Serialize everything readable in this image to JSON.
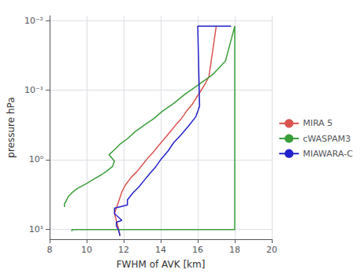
{
  "chart_data": {
    "type": "line",
    "title": "",
    "xlabel": "FWHM of AVK [km]",
    "ylabel": "pressure hPa",
    "log": "y",
    "grid": true,
    "legend": "right",
    "xlim": [
      8,
      20
    ],
    "xticks": [
      8,
      10,
      12,
      14,
      16,
      18,
      20
    ],
    "ylim": [
      0.0085,
      14.0
    ],
    "yticks": [
      {
        "value": 0.01,
        "label": "10⁻²"
      },
      {
        "value": 0.1,
        "label": "10⁻¹"
      },
      {
        "value": 1,
        "label": "10⁰"
      },
      {
        "value": 10,
        "label": "10¹"
      }
    ],
    "series": [
      {
        "name": "MIRA 5",
        "color": "#d9534f",
        "x": [
          11.8,
          11.7,
          11.6,
          11.5,
          11.6,
          11.7,
          11.8,
          11.9,
          12.1,
          12.4,
          12.7,
          13.0,
          13.3,
          13.6,
          13.9,
          14.2,
          14.5,
          14.8,
          15.1,
          15.4,
          15.7,
          16.0,
          16.3,
          16.6,
          17.0
        ],
        "values": [
          12.5,
          9.5,
          7.5,
          6.0,
          5.0,
          4.2,
          3.5,
          2.9,
          2.3,
          1.8,
          1.5,
          1.2,
          0.95,
          0.78,
          0.62,
          0.5,
          0.4,
          0.32,
          0.26,
          0.2,
          0.16,
          0.12,
          0.09,
          0.065,
          0.012
        ]
      },
      {
        "name": "cWASPAM3",
        "color": "#3a9e3a",
        "x": [
          8.8,
          8.8,
          8.9,
          9.0,
          9.2,
          9.5,
          10.0,
          10.4,
          10.8,
          11.1,
          11.4,
          11.5,
          11.2,
          11.5,
          11.8,
          12.2,
          12.6,
          13.1,
          13.6,
          14.1,
          14.7,
          15.3,
          16.0,
          16.8,
          17.5,
          18.0,
          18.0,
          9.2,
          9.2
        ],
        "values": [
          4.8,
          4.3,
          3.9,
          3.4,
          3.0,
          2.6,
          2.2,
          1.9,
          1.65,
          1.45,
          1.25,
          1.05,
          0.85,
          0.72,
          0.6,
          0.5,
          0.4,
          0.32,
          0.26,
          0.2,
          0.155,
          0.115,
          0.085,
          0.06,
          0.038,
          0.012,
          10.2,
          10.2,
          10.8
        ]
      },
      {
        "name": "MIAWARA-C",
        "color": "#2222cc",
        "x": [
          11.8,
          11.7,
          11.6,
          11.6,
          11.9,
          11.5,
          11.5,
          12.2,
          12.2,
          12.5,
          12.8,
          13.1,
          13.4,
          13.7,
          14.0,
          14.4,
          14.7,
          15.1,
          15.5,
          15.9,
          16.1,
          16.0,
          17.8
        ],
        "values": [
          12.5,
          10.0,
          9.0,
          8.0,
          7.5,
          6.0,
          5.0,
          4.5,
          3.8,
          3.0,
          2.5,
          2.0,
          1.6,
          1.3,
          1.0,
          0.75,
          0.57,
          0.44,
          0.33,
          0.24,
          0.17,
          0.012,
          0.012
        ]
      }
    ]
  }
}
